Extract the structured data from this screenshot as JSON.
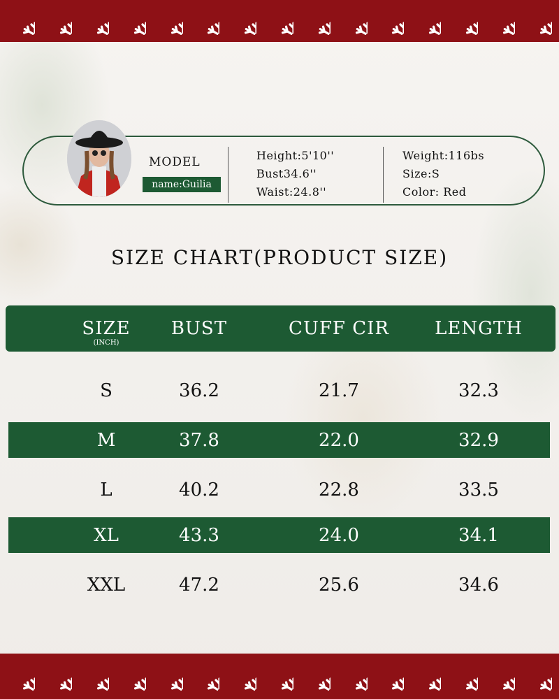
{
  "colors": {
    "band": "#8e1116",
    "green": "#1d5a33",
    "snowflake": "#ffffff"
  },
  "border_icon": "snowflake-icon",
  "model": {
    "label": "MODEL",
    "name": "name:Guilia",
    "height": "Height:5'10''",
    "bust": "Bust34.6''",
    "waist": "Waist:24.8''",
    "weight": "Weight:116bs",
    "size": "Size:S",
    "color": "Color: Red"
  },
  "title": "SIZE CHART(PRODUCT SIZE)",
  "table": {
    "headers": [
      "SIZE",
      "BUST",
      "CUFF CIR",
      "LENGTH"
    ],
    "unit": "(INCH)",
    "rows": [
      [
        "S",
        "36.2",
        "21.7",
        "32.3"
      ],
      [
        "M",
        "37.8",
        "22.0",
        "32.9"
      ],
      [
        "L",
        "40.2",
        "22.8",
        "33.5"
      ],
      [
        "XL",
        "43.3",
        "24.0",
        "34.1"
      ],
      [
        "XXL",
        "47.2",
        "25.6",
        "34.6"
      ]
    ]
  }
}
